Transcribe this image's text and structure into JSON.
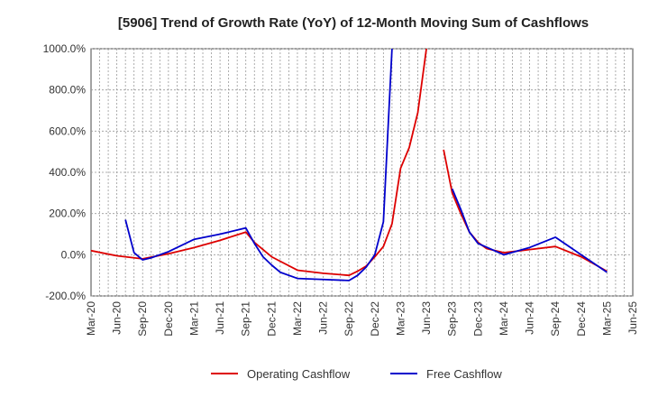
{
  "chart_data": {
    "type": "line",
    "title": "[5906]  Trend of Growth Rate (YoY) of 12-Month Moving Sum of Cashflows",
    "xlabel": "",
    "ylabel": "",
    "ylim": [
      -200,
      1000
    ],
    "y_ticks": [
      1000,
      800,
      600,
      400,
      200,
      0,
      -200
    ],
    "y_tick_labels": [
      "1000.0%",
      "800.0%",
      "600.0%",
      "400.0%",
      "200.0%",
      "0.0%",
      "-200.0%"
    ],
    "x_tick_labels": [
      "Mar-20",
      "Jun-20",
      "Sep-20",
      "Dec-20",
      "Mar-21",
      "Jun-21",
      "Sep-21",
      "Dec-21",
      "Mar-22",
      "Jun-22",
      "Sep-22",
      "Dec-22",
      "Mar-23",
      "Jun-23",
      "Sep-23",
      "Dec-23",
      "Mar-24",
      "Jun-24",
      "Sep-24",
      "Dec-24",
      "Mar-25",
      "Jun-25"
    ],
    "grid": true,
    "legend_position": "bottom",
    "series": [
      {
        "name": "Operating Cashflow",
        "color": "#dd0000",
        "points": [
          [
            "Mar-20",
            20
          ],
          [
            "Jun-20",
            -5
          ],
          [
            "Sep-20",
            -20
          ],
          [
            "Dec-20",
            5
          ],
          [
            "Mar-21",
            35
          ],
          [
            "Jun-21",
            70
          ],
          [
            "Sep-21",
            110
          ],
          [
            "Oct-21",
            60
          ],
          [
            "Dec-21",
            -10
          ],
          [
            "Mar-22",
            -75
          ],
          [
            "Jun-22",
            -90
          ],
          [
            "Sep-22",
            -100
          ],
          [
            "Oct-22",
            -80
          ],
          [
            "Nov-22",
            -55
          ],
          [
            "Dec-22",
            -10
          ],
          [
            "Jan-23",
            40
          ],
          [
            "Feb-23",
            150
          ],
          [
            "Mar-23",
            420
          ],
          [
            "Apr-23",
            520
          ],
          [
            "May-23",
            690
          ],
          [
            "Jun-23",
            1000
          ]
        ],
        "points_after_gap": [
          [
            "Aug-23",
            510
          ],
          [
            "Sep-23",
            300
          ],
          [
            "Oct-23",
            200
          ],
          [
            "Nov-23",
            110
          ],
          [
            "Dec-23",
            60
          ],
          [
            "Jan-24",
            30
          ],
          [
            "Mar-24",
            10
          ],
          [
            "Jun-24",
            25
          ],
          [
            "Sep-24",
            40
          ],
          [
            "Dec-24",
            -10
          ],
          [
            "Mar-25",
            -80
          ]
        ]
      },
      {
        "name": "Free Cashflow",
        "color": "#0000cc",
        "points": [
          [
            "Jul-20",
            170
          ],
          [
            "Aug-20",
            10
          ],
          [
            "Sep-20",
            -25
          ],
          [
            "Oct-20",
            -15
          ],
          [
            "Dec-20",
            15
          ],
          [
            "Mar-21",
            75
          ],
          [
            "Jun-21",
            100
          ],
          [
            "Sep-21",
            130
          ],
          [
            "Oct-21",
            55
          ],
          [
            "Nov-21",
            -10
          ],
          [
            "Dec-21",
            -50
          ],
          [
            "Jan-22",
            -85
          ],
          [
            "Mar-22",
            -115
          ],
          [
            "Jun-22",
            -120
          ],
          [
            "Sep-22",
            -125
          ],
          [
            "Oct-22",
            -100
          ],
          [
            "Nov-22",
            -60
          ],
          [
            "Dec-22",
            0
          ],
          [
            "Jan-23",
            160
          ],
          [
            "Feb-23",
            1000
          ]
        ],
        "points_after_gap": [
          [
            "Sep-23",
            320
          ],
          [
            "Oct-23",
            220
          ],
          [
            "Nov-23",
            110
          ],
          [
            "Dec-23",
            55
          ],
          [
            "Mar-24",
            0
          ],
          [
            "Jun-24",
            35
          ],
          [
            "Sep-24",
            85
          ],
          [
            "Dec-24",
            0
          ],
          [
            "Mar-25",
            -85
          ]
        ]
      }
    ]
  }
}
